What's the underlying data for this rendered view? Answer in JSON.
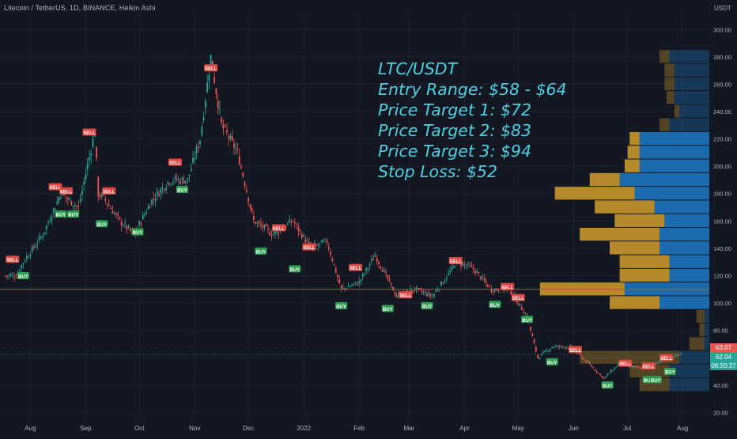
{
  "header": {
    "title": "Litecoin / TetherUS, 1D, BINANCE, Heikin Ashi",
    "currency": "USDT"
  },
  "annotation": {
    "lines": [
      "LTC/USDT",
      "Entry Range: $58 - $64",
      "Price Target 1: $72",
      "Price Target 2: $83",
      "Price Target 3: $94",
      "Stop Loss: $52"
    ]
  },
  "price_tags": {
    "current_price": "63.07",
    "live_price": "62.04",
    "countdown": "06:50:37"
  },
  "colors": {
    "background": "#131722",
    "grid": "#1e2230",
    "up": "#26a69a",
    "down": "#ef5350",
    "axis_text": "#b2b5be",
    "annotation": "#4dd0e1",
    "profile_up": "#1e73be",
    "profile_down": "#c8962a",
    "red_line": "#f23645"
  },
  "chart_data": {
    "type": "candlestick",
    "x_ticks": [
      "Aug",
      "Sep",
      "Oct",
      "Nov",
      "Dec",
      "2022",
      "Feb",
      "Mar",
      "Apr",
      "May",
      "Jun",
      "Jul",
      "Aug"
    ],
    "y_ticks": [
      "300.00",
      "280.00",
      "260.00",
      "240.00",
      "220.00",
      "200.00",
      "180.00",
      "160.00",
      "140.00",
      "120.00",
      "100.00",
      "80.00",
      "60.00",
      "40.00",
      "20.00"
    ],
    "ylim": [
      15,
      310
    ],
    "horizontal_line": 110,
    "grid": true,
    "price_path": [
      {
        "date": "2021-07-24",
        "price": 120
      },
      {
        "date": "2021-07-28",
        "price": 130
      },
      {
        "date": "2021-08-08",
        "price": 150
      },
      {
        "date": "2021-08-18",
        "price": 180
      },
      {
        "date": "2021-08-28",
        "price": 170
      },
      {
        "date": "2021-09-06",
        "price": 225
      },
      {
        "date": "2021-09-08",
        "price": 180
      },
      {
        "date": "2021-09-12",
        "price": 175
      },
      {
        "date": "2021-09-20",
        "price": 160
      },
      {
        "date": "2021-09-28",
        "price": 150
      },
      {
        "date": "2021-10-08",
        "price": 175
      },
      {
        "date": "2021-10-18",
        "price": 190
      },
      {
        "date": "2021-10-28",
        "price": 190
      },
      {
        "date": "2021-11-04",
        "price": 220
      },
      {
        "date": "2021-11-10",
        "price": 280
      },
      {
        "date": "2021-11-16",
        "price": 230
      },
      {
        "date": "2021-11-25",
        "price": 210
      },
      {
        "date": "2021-12-04",
        "price": 160
      },
      {
        "date": "2021-12-15",
        "price": 150
      },
      {
        "date": "2021-12-26",
        "price": 160
      },
      {
        "date": "2022-01-05",
        "price": 140
      },
      {
        "date": "2022-01-14",
        "price": 145
      },
      {
        "date": "2022-01-22",
        "price": 110
      },
      {
        "date": "2022-02-01",
        "price": 115
      },
      {
        "date": "2022-02-10",
        "price": 135
      },
      {
        "date": "2022-02-22",
        "price": 105
      },
      {
        "date": "2022-03-04",
        "price": 110
      },
      {
        "date": "2022-03-14",
        "price": 105
      },
      {
        "date": "2022-03-28",
        "price": 130
      },
      {
        "date": "2022-04-06",
        "price": 125
      },
      {
        "date": "2022-04-16",
        "price": 110
      },
      {
        "date": "2022-04-26",
        "price": 110
      },
      {
        "date": "2022-05-06",
        "price": 90
      },
      {
        "date": "2022-05-12",
        "price": 60
      },
      {
        "date": "2022-05-20",
        "price": 68
      },
      {
        "date": "2022-05-30",
        "price": 68
      },
      {
        "date": "2022-06-06",
        "price": 60
      },
      {
        "date": "2022-06-18",
        "price": 45
      },
      {
        "date": "2022-06-26",
        "price": 55
      },
      {
        "date": "2022-07-10",
        "price": 52
      },
      {
        "date": "2022-07-20",
        "price": 58
      },
      {
        "date": "2022-07-31",
        "price": 62
      }
    ],
    "signals": [
      {
        "type": "SELL",
        "date": "2021-07-22",
        "price": 132
      },
      {
        "type": "BUY",
        "date": "2021-07-28",
        "price": 120
      },
      {
        "type": "SELL",
        "date": "2021-08-15",
        "price": 185
      },
      {
        "type": "BUY",
        "date": "2021-08-18",
        "price": 165
      },
      {
        "type": "SELL",
        "date": "2021-08-21",
        "price": 182
      },
      {
        "type": "BUY",
        "date": "2021-08-25",
        "price": 165
      },
      {
        "type": "SELL",
        "date": "2021-09-03",
        "price": 225
      },
      {
        "type": "BUY",
        "date": "2021-09-10",
        "price": 158
      },
      {
        "type": "SELL",
        "date": "2021-09-14",
        "price": 182
      },
      {
        "type": "BUY",
        "date": "2021-09-30",
        "price": 152
      },
      {
        "type": "SELL",
        "date": "2021-10-21",
        "price": 203
      },
      {
        "type": "BUY",
        "date": "2021-10-25",
        "price": 183
      },
      {
        "type": "SELL",
        "date": "2021-11-10",
        "price": 272
      },
      {
        "type": "BUY",
        "date": "2021-12-08",
        "price": 138
      },
      {
        "type": "SELL",
        "date": "2021-12-18",
        "price": 155
      },
      {
        "type": "BUY",
        "date": "2021-12-27",
        "price": 125
      },
      {
        "type": "SELL",
        "date": "2022-01-04",
        "price": 141
      },
      {
        "type": "BUY",
        "date": "2022-01-22",
        "price": 98
      },
      {
        "type": "SELL",
        "date": "2022-01-30",
        "price": 126
      },
      {
        "type": "BUY",
        "date": "2022-02-17",
        "price": 96
      },
      {
        "type": "SELL",
        "date": "2022-02-27",
        "price": 106
      },
      {
        "type": "BUY",
        "date": "2022-03-11",
        "price": 98
      },
      {
        "type": "SELL",
        "date": "2022-03-27",
        "price": 131
      },
      {
        "type": "BUY",
        "date": "2022-04-18",
        "price": 99
      },
      {
        "type": "SELL",
        "date": "2022-04-25",
        "price": 112
      },
      {
        "type": "SELL",
        "date": "2022-05-01",
        "price": 104
      },
      {
        "type": "BUY",
        "date": "2022-05-06",
        "price": 88
      },
      {
        "type": "BUY",
        "date": "2022-05-20",
        "price": 57
      },
      {
        "type": "SELL",
        "date": "2022-06-02",
        "price": 66
      },
      {
        "type": "BUY",
        "date": "2022-06-20",
        "price": 40
      },
      {
        "type": "SELL",
        "date": "2022-06-30",
        "price": 56
      },
      {
        "type": "SELL",
        "date": "2022-07-13",
        "price": 54
      },
      {
        "type": "BUY",
        "date": "2022-07-13",
        "price": 44
      },
      {
        "type": "BUY",
        "date": "2022-07-17",
        "price": 44
      },
      {
        "type": "SELL",
        "date": "2022-07-23",
        "price": 60
      },
      {
        "type": "BUY",
        "date": "2022-07-25",
        "price": 50
      }
    ],
    "volume_profile": [
      {
        "price_from": 275,
        "price_to": 285,
        "up": 0.4,
        "down": 0.1
      },
      {
        "price_from": 265,
        "price_to": 275,
        "up": 0.35,
        "down": 0.1
      },
      {
        "price_from": 255,
        "price_to": 265,
        "up": 0.35,
        "down": 0.1
      },
      {
        "price_from": 245,
        "price_to": 255,
        "up": 0.35,
        "down": 0.08
      },
      {
        "price_from": 235,
        "price_to": 245,
        "up": 0.3,
        "down": 0.05
      },
      {
        "price_from": 225,
        "price_to": 235,
        "up": 0.4,
        "down": 0.1
      },
      {
        "price_from": 215,
        "price_to": 225,
        "up": 0.7,
        "down": 0.1
      },
      {
        "price_from": 205,
        "price_to": 215,
        "up": 0.7,
        "down": 0.12
      },
      {
        "price_from": 195,
        "price_to": 205,
        "up": 0.7,
        "down": 0.15
      },
      {
        "price_from": 185,
        "price_to": 195,
        "up": 0.9,
        "down": 0.3
      },
      {
        "price_from": 175,
        "price_to": 185,
        "up": 0.75,
        "down": 0.8
      },
      {
        "price_from": 165,
        "price_to": 175,
        "up": 0.55,
        "down": 0.6
      },
      {
        "price_from": 155,
        "price_to": 165,
        "up": 0.45,
        "down": 0.5
      },
      {
        "price_from": 145,
        "price_to": 155,
        "up": 0.5,
        "down": 0.8
      },
      {
        "price_from": 135,
        "price_to": 145,
        "up": 0.5,
        "down": 0.5
      },
      {
        "price_from": 125,
        "price_to": 135,
        "up": 0.4,
        "down": 0.5
      },
      {
        "price_from": 115,
        "price_to": 125,
        "up": 0.4,
        "down": 0.5
      },
      {
        "price_from": 105,
        "price_to": 115,
        "up": 0.85,
        "down": 0.85
      },
      {
        "price_from": 95,
        "price_to": 105,
        "up": 0.5,
        "down": 0.5
      },
      {
        "price_from": 85,
        "price_to": 95,
        "up": 0.05,
        "down": 0.08
      },
      {
        "price_from": 75,
        "price_to": 85,
        "up": 0.05,
        "down": 0.05
      },
      {
        "price_from": 65,
        "price_to": 75,
        "up": 0.05,
        "down": 0.15
      },
      {
        "price_from": 55,
        "price_to": 65,
        "up": 0.3,
        "down": 1.0
      },
      {
        "price_from": 45,
        "price_to": 55,
        "up": 0.4,
        "down": 0.4
      },
      {
        "price_from": 35,
        "price_to": 45,
        "up": 0.4,
        "down": 0.3
      }
    ]
  }
}
